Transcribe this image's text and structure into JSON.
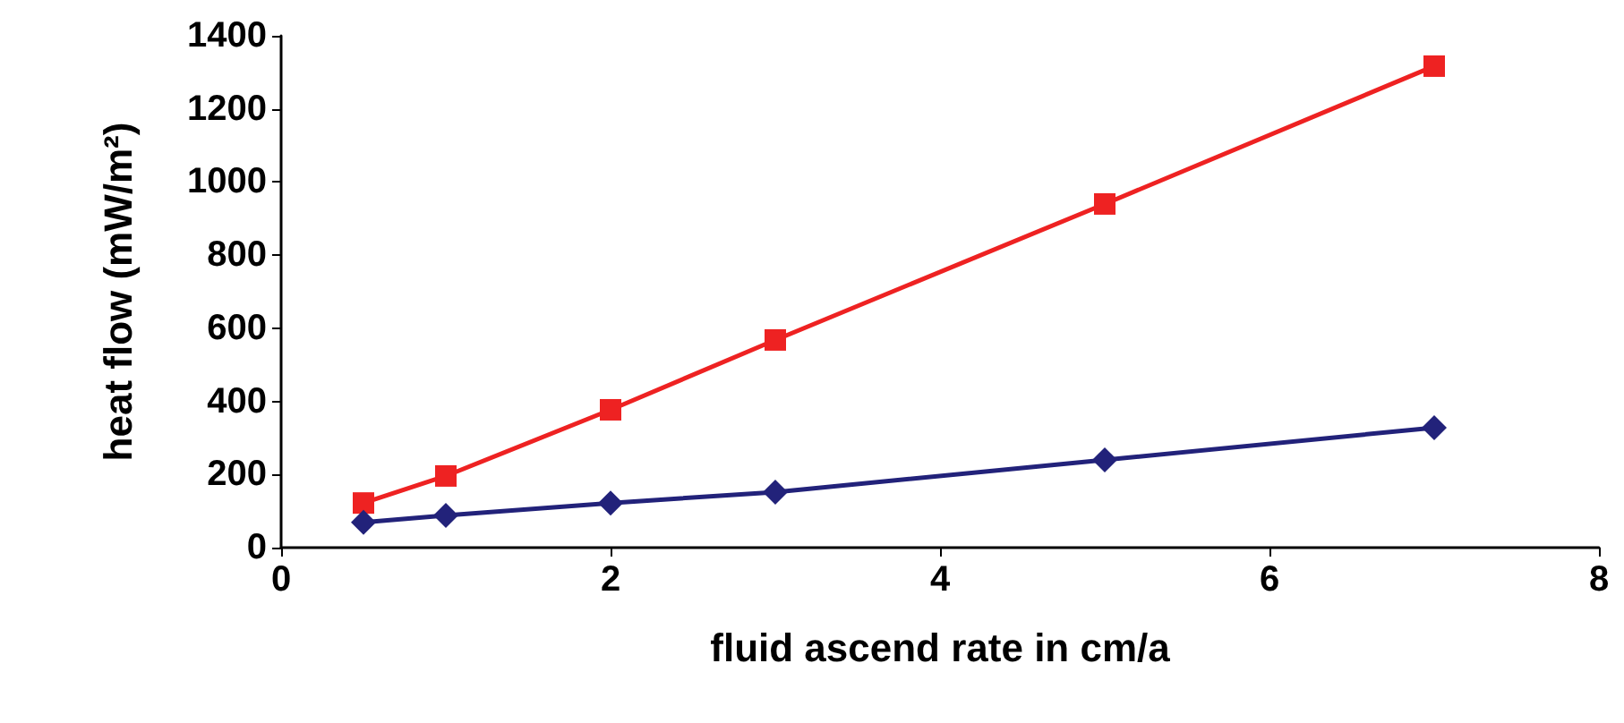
{
  "chart_data": {
    "type": "line",
    "xlabel": "fluid ascend rate in cm/a",
    "ylabel": "heat flow (mW/m²)",
    "xlim": [
      0,
      8
    ],
    "xticks": [
      0,
      2,
      4,
      6,
      8
    ],
    "ylim": [
      0,
      1400
    ],
    "yticks": [
      0,
      200,
      400,
      600,
      800,
      1000,
      1200,
      1400
    ],
    "grid": false,
    "series": [
      {
        "color": "#ee2222",
        "marker": "square",
        "x": [
          0.5,
          1,
          2,
          3,
          5,
          7
        ],
        "values": [
          122,
          196,
          377,
          568,
          940,
          1317
        ]
      },
      {
        "color": "#22227a",
        "marker": "diamond",
        "x": [
          0.5,
          1,
          2,
          3,
          5,
          7
        ],
        "values": [
          69,
          88,
          122,
          152,
          240,
          328
        ]
      }
    ]
  }
}
